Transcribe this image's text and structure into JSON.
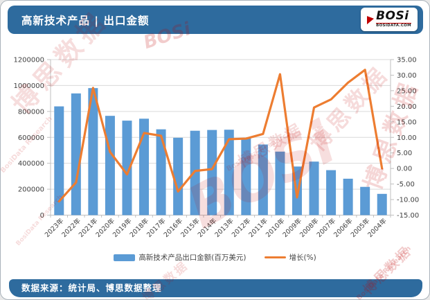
{
  "header": {
    "title": "高新技术产品 | 出口金额"
  },
  "logo": {
    "name": "BOSi",
    "domain": "BOSIDATA.COM"
  },
  "legend": {
    "bar_label": "高新技术产品出口金额(百万美元)",
    "line_label": "增长(%)"
  },
  "footer": {
    "source": "数据来源：统计局、博思数据整理"
  },
  "colors": {
    "bar": "#5B9BD5",
    "line": "#ED7D31",
    "band_bg": "#2E6B9E",
    "grid": "#D9D9D9",
    "axis_line": "#BFBFBF",
    "axis_text": "#404040",
    "watermark": "#C00000"
  },
  "watermarks": [
    {
      "text": "博思数据"
    },
    {
      "text": "BosiData Research"
    },
    {
      "text": "BOSi"
    },
    {
      "text": "博思数据"
    },
    {
      "text": "BosiData Research"
    },
    {
      "text": "博思数据"
    },
    {
      "text": "博思数据"
    },
    {
      "text": "BosiData Research"
    },
    {
      "text": "博思数据"
    },
    {
      "text": "BOSi"
    },
    {
      "text": "博思数据"
    },
    {
      "text": "BosiData Research"
    }
  ],
  "chart_data": {
    "type": "bar+line combo",
    "categories": [
      "2023年",
      "2022年",
      "2021年",
      "2020年",
      "2019年",
      "2018年",
      "2017年",
      "2016年",
      "2015年",
      "2014年",
      "2013年",
      "2012年",
      "2011年",
      "2010年",
      "2009年",
      "2008年",
      "2007年",
      "2006年",
      "2005年",
      "2004年"
    ],
    "series": [
      {
        "name": "高新技术产品出口金额(百万美元)",
        "type": "bar",
        "axis": "left",
        "values": [
          839000,
          939000,
          980000,
          766000,
          729000,
          744000,
          662000,
          597000,
          651000,
          657000,
          659000,
          596000,
          545000,
          490000,
          375000,
          413000,
          347000,
          281000,
          218000,
          164000
        ]
      },
      {
        "name": "增长(%)",
        "type": "line",
        "axis": "right",
        "values": [
          -10.6,
          -4.5,
          25.9,
          5.3,
          -1.9,
          11.4,
          10.5,
          -7.4,
          -0.8,
          -0.2,
          9.4,
          9.6,
          11.1,
          30.3,
          -9.3,
          19.6,
          22.2,
          27.6,
          31.7,
          0.0
        ]
      }
    ],
    "left_axis": {
      "min": 0,
      "max": 1200000,
      "step": 200000
    },
    "right_axis": {
      "min": -15,
      "max": 35,
      "step": 5,
      "decimals": 2
    },
    "grid": true,
    "legend_position": "bottom"
  }
}
